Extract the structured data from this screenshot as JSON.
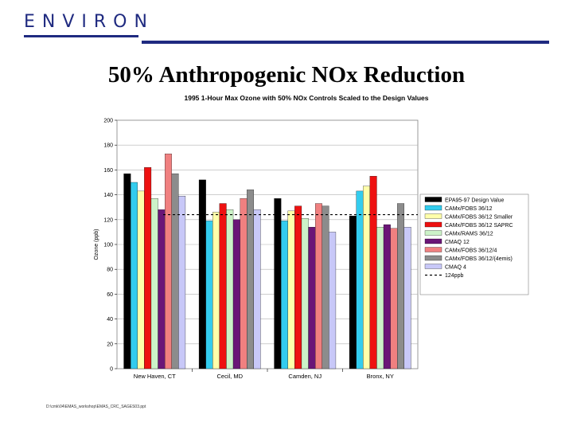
{
  "header": {
    "logo_text": "ENVIRON",
    "brand_color": "#1f2a80"
  },
  "slide": {
    "title": "50% Anthropogenic NOx Reduction",
    "footer_path": "D:\\cmk\\04\\EMAS_workshop\\EMAS_CRC_SAGES03.ppt"
  },
  "chart_data": {
    "type": "bar",
    "title": "1995 1-Hour Max Ozone with 50% NOx Controls Scaled to the Design Values",
    "xlabel": "",
    "ylabel": "Ozone (ppb)",
    "ylim": [
      0,
      200
    ],
    "yticks": [
      0,
      20,
      40,
      60,
      80,
      100,
      120,
      140,
      160,
      180,
      200
    ],
    "ytick_labels": [
      "0",
      "20",
      "40",
      "60",
      "80",
      "100",
      "120",
      "140",
      "160",
      "180",
      "200"
    ],
    "grid": true,
    "legend_position": "right",
    "categories": [
      "New Haven, CT",
      "Cecil, MD",
      "Camden, NJ",
      "Bronx, NY"
    ],
    "series": [
      {
        "name": "EPA95-97 Design Value",
        "color": "#000000",
        "values": [
          157,
          152,
          137,
          123
        ]
      },
      {
        "name": "CAMx/FOBS 36/12",
        "color": "#33ccee",
        "values": [
          150,
          119,
          119,
          143
        ]
      },
      {
        "name": "CAMx/FOBS 36/12 Smaller",
        "color": "#ffffaa",
        "values": [
          143,
          126,
          127,
          147
        ]
      },
      {
        "name": "CAMx/FOBS 36/12 SAPRC",
        "color": "#ee1111",
        "values": [
          162,
          133,
          131,
          155
        ]
      },
      {
        "name": "CAMx/RAMS 36/12",
        "color": "#ccf2c8",
        "values": [
          137,
          128,
          121,
          114
        ]
      },
      {
        "name": "CMAQ 12",
        "color": "#6a1677",
        "values": [
          128,
          120,
          114,
          116
        ]
      },
      {
        "name": "CAMx/FOBS 36/12/4",
        "color": "#f08080",
        "values": [
          173,
          137,
          133,
          113
        ]
      },
      {
        "name": "CAMx/FOBS 36/12/(4emis)",
        "color": "#8c8c8c",
        "values": [
          157,
          144,
          131,
          133
        ]
      },
      {
        "name": "CMAQ 4",
        "color": "#c8c8f8",
        "values": [
          139,
          128,
          110,
          114
        ]
      }
    ],
    "reference_line": {
      "name": "124ppb",
      "value": 124
    }
  }
}
